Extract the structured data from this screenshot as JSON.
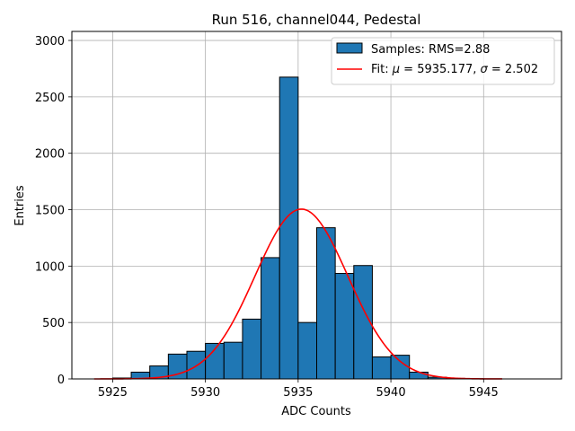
{
  "chart_data": {
    "type": "bar",
    "title": "Run 516, channel044, Pedestal",
    "xlabel": "ADC Counts",
    "ylabel": "Entries",
    "xlim": [
      5922.8,
      5949.2
    ],
    "ylim": [
      0,
      3080
    ],
    "xticks": [
      5925,
      5930,
      5935,
      5940,
      5945
    ],
    "yticks": [
      0,
      500,
      1000,
      1500,
      2000,
      2500,
      3000
    ],
    "grid": true,
    "legend_position": "top-right",
    "colors": {
      "bar_fill": "#1f77b4",
      "bar_edge": "#000000",
      "fit_line": "#ff0000"
    },
    "histogram": {
      "name": "Samples: RMS=2.88",
      "bin_edges": [
        5924,
        5925,
        5926,
        5927,
        5928,
        5929,
        5930,
        5931,
        5932,
        5933,
        5934,
        5935,
        5936,
        5937,
        5938,
        5939,
        5940,
        5941,
        5942,
        5943,
        5944,
        5945,
        5946,
        5947,
        5948
      ],
      "counts": [
        0,
        8,
        60,
        115,
        220,
        245,
        315,
        325,
        530,
        1075,
        2675,
        500,
        1340,
        935,
        1005,
        195,
        210,
        60,
        15,
        5,
        2,
        0,
        0,
        0
      ]
    },
    "fit": {
      "name_prefix": "Fit: ",
      "mu_symbol": "μ",
      "mu_value": " = 5935.177, ",
      "sigma_symbol": "σ",
      "sigma_value": " = 2.502",
      "mu": 5935.177,
      "sigma": 2.502,
      "amplitude": 1505,
      "x_range": [
        5924,
        5946
      ]
    }
  }
}
